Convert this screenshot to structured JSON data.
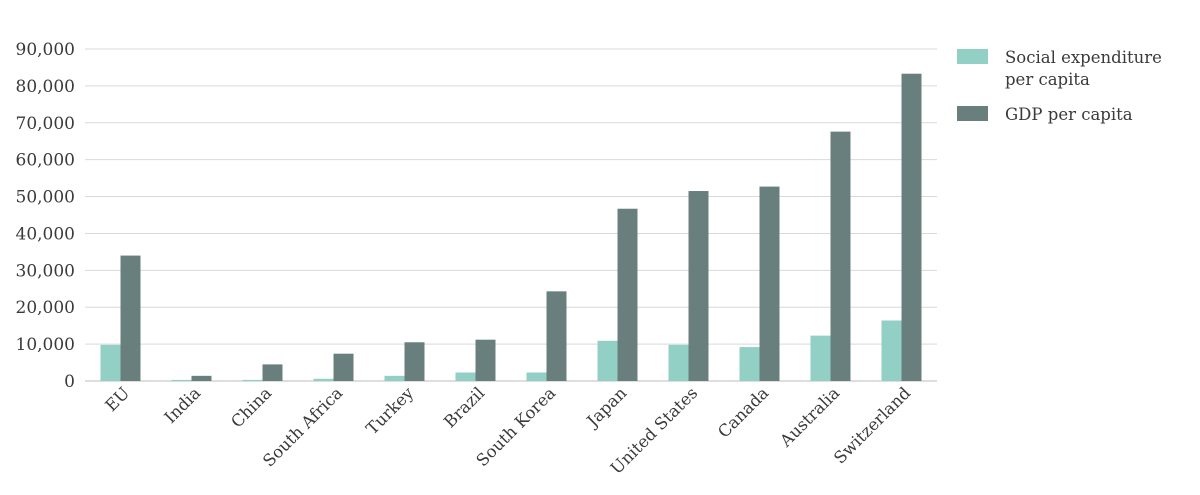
{
  "chart_data": {
    "type": "bar",
    "categories": [
      "EU",
      "India",
      "China",
      "South Africa",
      "Turkey",
      "Brazil",
      "South Korea",
      "Japan",
      "United States",
      "Canada",
      "Australia",
      "Switzerland"
    ],
    "series": [
      {
        "name": "Social expenditure per capita",
        "color": "#92cfc4",
        "values": [
          9800,
          300,
          300,
          600,
          1400,
          2300,
          2300,
          10900,
          9800,
          9200,
          12300,
          16400
        ]
      },
      {
        "name": "GDP per capita",
        "color": "#697f7d",
        "values": [
          34000,
          1400,
          4500,
          7400,
          10500,
          11200,
          24300,
          46700,
          51500,
          52700,
          67600,
          83300
        ]
      }
    ],
    "ylim": [
      0,
      90000
    ],
    "yticks": [
      "0",
      "10,000",
      "20,000",
      "30,000",
      "40,000",
      "50,000",
      "60,000",
      "70,000",
      "80,000",
      "90,000"
    ],
    "grid": true,
    "legend_position": "right",
    "title": "",
    "xlabel": "",
    "ylabel": ""
  },
  "legend": {
    "items": [
      {
        "label_line1": "Social expenditure",
        "label_line2": "per capita"
      },
      {
        "label_line1": "GDP per capita",
        "label_line2": ""
      }
    ]
  }
}
